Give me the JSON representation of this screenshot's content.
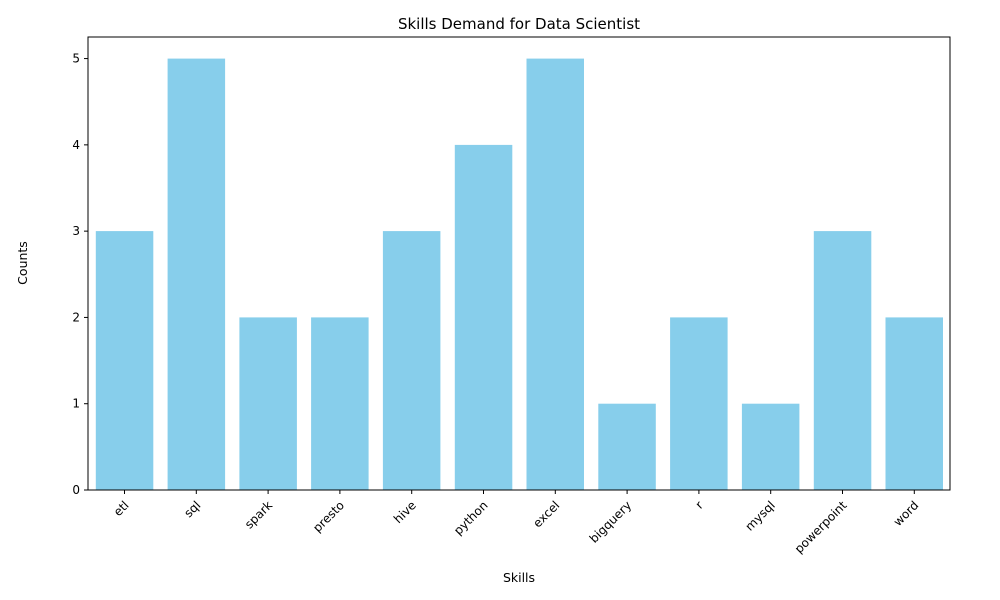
{
  "chart_data": {
    "type": "bar",
    "title": "Skills Demand for Data Scientist",
    "xlabel": "Skills",
    "ylabel": "Counts",
    "categories": [
      "etl",
      "sql",
      "spark",
      "presto",
      "hive",
      "python",
      "excel",
      "bigquery",
      "r",
      "mysql",
      "powerpoint",
      "word"
    ],
    "values": [
      3,
      5,
      2,
      2,
      3,
      4,
      5,
      1,
      2,
      1,
      3,
      2
    ],
    "ylim": [
      0,
      5.25
    ],
    "yticks": [
      0,
      1,
      2,
      3,
      4,
      5
    ],
    "bar_color": "#87CEEB",
    "grid": false,
    "legend": "none"
  }
}
